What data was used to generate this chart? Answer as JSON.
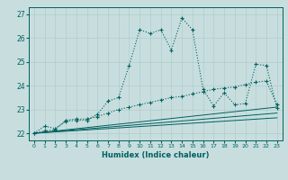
{
  "xlabel": "Humidex (Indice chaleur)",
  "bg_color": "#c8dede",
  "line_color": "#006060",
  "grid_color": "#b0cccc",
  "xlim": [
    -0.5,
    23.5
  ],
  "ylim": [
    21.7,
    27.3
  ],
  "xticks": [
    0,
    1,
    2,
    3,
    4,
    5,
    6,
    7,
    8,
    9,
    10,
    11,
    12,
    13,
    14,
    15,
    16,
    17,
    18,
    19,
    20,
    21,
    22,
    23
  ],
  "yticks": [
    22,
    23,
    24,
    25,
    26,
    27
  ],
  "line1_x": [
    0,
    1,
    2,
    3,
    4,
    5,
    6,
    7,
    8,
    9,
    10,
    11,
    12,
    13,
    14,
    15,
    16,
    17,
    18,
    19,
    20,
    21,
    22,
    23
  ],
  "line1_y": [
    22.0,
    22.3,
    22.2,
    22.5,
    22.55,
    22.55,
    22.8,
    23.35,
    23.5,
    24.85,
    26.35,
    26.2,
    26.35,
    25.5,
    26.85,
    26.35,
    23.85,
    23.15,
    23.7,
    23.2,
    23.25,
    24.9,
    24.85,
    23.05
  ],
  "line2_x": [
    0,
    1,
    2,
    3,
    4,
    5,
    6,
    7,
    8,
    9,
    10,
    11,
    12,
    13,
    14,
    15,
    16,
    17,
    18,
    19,
    20,
    21,
    22,
    23
  ],
  "line2_y": [
    22.0,
    22.1,
    22.15,
    22.55,
    22.6,
    22.6,
    22.7,
    22.85,
    23.0,
    23.1,
    23.2,
    23.3,
    23.4,
    23.5,
    23.55,
    23.65,
    23.75,
    23.85,
    23.9,
    23.95,
    24.05,
    24.15,
    24.2,
    23.2
  ],
  "line3_x": [
    0,
    23
  ],
  "line3_y": [
    22.0,
    23.1
  ],
  "line4_x": [
    0,
    23
  ],
  "line4_y": [
    22.0,
    22.85
  ],
  "line5_x": [
    0,
    23
  ],
  "line5_y": [
    22.0,
    22.65
  ]
}
